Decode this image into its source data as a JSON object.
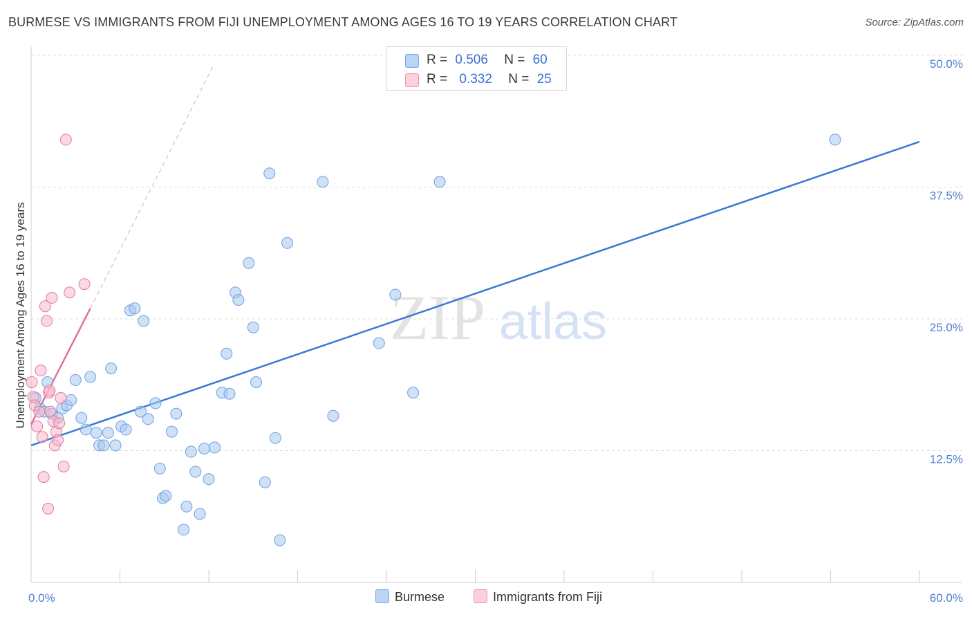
{
  "title": "BURMESE VS IMMIGRANTS FROM FIJI UNEMPLOYMENT AMONG AGES 16 TO 19 YEARS CORRELATION CHART",
  "source": "Source: ZipAtlas.com",
  "watermark": {
    "zip": "ZIP",
    "atlas": "atlas"
  },
  "legend": {
    "rows": [
      {
        "r_label": "R =",
        "r_value": "0.506",
        "n_label": "N =",
        "n_value": "60",
        "color": "#a8c8f0"
      },
      {
        "r_label": "R =",
        "r_value": "0.332",
        "n_label": "N =",
        "n_value": "25",
        "color": "#f7b8cc"
      }
    ]
  },
  "bottom_legend": [
    {
      "label": "Burmese",
      "color": "#a8c8f0"
    },
    {
      "label": "Immigrants from Fiji",
      "color": "#f7b8cc"
    }
  ],
  "chart_data": {
    "type": "scatter",
    "title": "BURMESE VS IMMIGRANTS FROM FIJI UNEMPLOYMENT AMONG AGES 16 TO 19 YEARS CORRELATION CHART",
    "xlabel": "",
    "ylabel": "Unemployment Among Ages 16 to 19 years",
    "xlim": [
      0,
      60
    ],
    "ylim": [
      0,
      50
    ],
    "x_tick_labels": [
      "0.0%",
      "60.0%"
    ],
    "y_ticks": [
      12.5,
      25.0,
      37.5,
      50.0
    ],
    "y_tick_labels": [
      "12.5%",
      "25.0%",
      "37.5%",
      "50.0%"
    ],
    "grid": true,
    "series": [
      {
        "name": "Burmese",
        "color": "#6f9fe0",
        "fill": "#a8c8f0",
        "trend": {
          "x": [
            0,
            60
          ],
          "y": [
            13.0,
            41.8
          ]
        },
        "points": [
          [
            0.3,
            17.5
          ],
          [
            0.6,
            16.5
          ],
          [
            0.9,
            16.2
          ],
          [
            1.1,
            19.0
          ],
          [
            1.4,
            16.0
          ],
          [
            1.8,
            15.6
          ],
          [
            2.1,
            16.5
          ],
          [
            2.4,
            16.8
          ],
          [
            2.7,
            17.3
          ],
          [
            3.0,
            19.2
          ],
          [
            3.4,
            15.6
          ],
          [
            3.7,
            14.5
          ],
          [
            4.0,
            19.5
          ],
          [
            4.4,
            14.2
          ],
          [
            4.6,
            13.0
          ],
          [
            4.9,
            13.0
          ],
          [
            5.2,
            14.2
          ],
          [
            5.4,
            20.3
          ],
          [
            5.7,
            13.0
          ],
          [
            6.1,
            14.8
          ],
          [
            6.4,
            14.5
          ],
          [
            6.7,
            25.8
          ],
          [
            7.0,
            26.0
          ],
          [
            7.4,
            16.2
          ],
          [
            7.6,
            24.8
          ],
          [
            7.9,
            15.5
          ],
          [
            8.4,
            17.0
          ],
          [
            8.7,
            10.8
          ],
          [
            8.9,
            8.0
          ],
          [
            9.1,
            8.2
          ],
          [
            9.5,
            14.3
          ],
          [
            9.8,
            16.0
          ],
          [
            10.3,
            5.0
          ],
          [
            10.5,
            7.2
          ],
          [
            10.8,
            12.4
          ],
          [
            11.1,
            10.5
          ],
          [
            11.4,
            6.5
          ],
          [
            11.7,
            12.7
          ],
          [
            12.0,
            9.8
          ],
          [
            12.4,
            12.8
          ],
          [
            12.9,
            18.0
          ],
          [
            13.2,
            21.7
          ],
          [
            13.4,
            17.9
          ],
          [
            13.8,
            27.5
          ],
          [
            14.0,
            26.8
          ],
          [
            14.7,
            30.3
          ],
          [
            15.0,
            24.2
          ],
          [
            15.2,
            19.0
          ],
          [
            15.8,
            9.5
          ],
          [
            16.1,
            38.8
          ],
          [
            16.5,
            13.7
          ],
          [
            16.8,
            4.0
          ],
          [
            17.3,
            32.2
          ],
          [
            19.7,
            38.0
          ],
          [
            20.4,
            15.8
          ],
          [
            23.5,
            22.7
          ],
          [
            24.6,
            27.3
          ],
          [
            25.8,
            18.0
          ],
          [
            27.6,
            38.0
          ],
          [
            54.3,
            42.0
          ]
        ]
      },
      {
        "name": "Immigrants from Fiji",
        "color": "#e07a9e",
        "fill": "#f7b8cc",
        "trend": {
          "x": [
            0,
            4.0
          ],
          "y": [
            15.0,
            26.0
          ]
        },
        "trend_extension": {
          "x": [
            4.0,
            12.3
          ],
          "y": [
            26.0,
            49.0
          ]
        },
        "points": [
          [
            0.05,
            19.0
          ],
          [
            0.15,
            17.6
          ],
          [
            0.25,
            16.8
          ],
          [
            0.4,
            14.8
          ],
          [
            0.55,
            16.2
          ],
          [
            0.65,
            20.1
          ],
          [
            0.75,
            13.8
          ],
          [
            0.85,
            10.0
          ],
          [
            0.95,
            26.2
          ],
          [
            1.05,
            24.8
          ],
          [
            1.15,
            7.0
          ],
          [
            1.2,
            18.0
          ],
          [
            1.3,
            16.2
          ],
          [
            1.4,
            27.0
          ],
          [
            1.5,
            15.3
          ],
          [
            1.6,
            13.0
          ],
          [
            1.7,
            14.3
          ],
          [
            1.8,
            13.5
          ],
          [
            1.9,
            15.1
          ],
          [
            2.0,
            17.5
          ],
          [
            2.2,
            11.0
          ],
          [
            2.35,
            42.0
          ],
          [
            2.6,
            27.5
          ],
          [
            3.6,
            28.3
          ],
          [
            1.25,
            18.2
          ]
        ]
      }
    ]
  }
}
